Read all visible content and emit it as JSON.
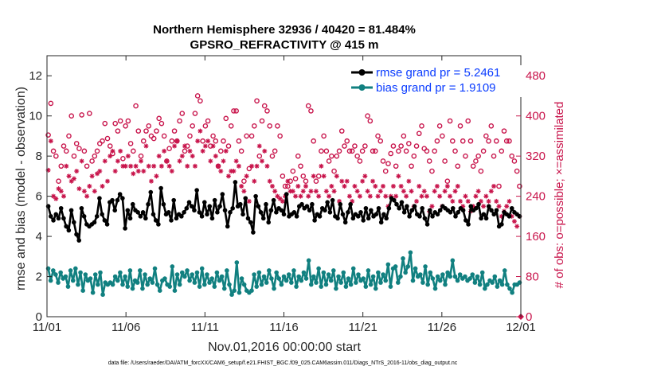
{
  "chart_data": {
    "type": "line",
    "title_line1": "Northern Hemisphere 32936 / 40420 = 81.484%",
    "title_line2": "GPSRO_REFRACTIVITY @ 415 m",
    "ylabel_left": "rmse and bias (model - observation)",
    "ylabel_right": "# of obs: o=possible; ×=assimilated",
    "xlabel": "Nov.01,2016 00:00:00 start",
    "footnote": "data file: /Users/raeder/DAI/ATM_forcXX/CAM6_setup/f.e21.FHIST_BGC.f09_025.CAM6assim.011/Diags_NTrS_2016-11/obs_diag_output.nc",
    "ylim_left": [
      0,
      13
    ],
    "ylim_right": [
      0,
      520
    ],
    "xlim": [
      0,
      30
    ],
    "yticks_left": [
      "0",
      "2",
      "4",
      "6",
      "8",
      "10",
      "12"
    ],
    "yticks_right": [
      "0",
      "80",
      "160",
      "240",
      "320",
      "400",
      "480"
    ],
    "xticks": [
      "11/01",
      "11/06",
      "11/11",
      "11/16",
      "11/21",
      "11/26",
      "12/01"
    ],
    "series": [
      {
        "name": "rmse grand pr = 5.2461",
        "color": "#000000",
        "marker": "filled-circle",
        "values": [
          5.5,
          5.0,
          4.8,
          5.1,
          4.9,
          5.4,
          4.9,
          4.5,
          4.3,
          5.3,
          4.7,
          4.1,
          3.8,
          5.4,
          5.0,
          4.6,
          4.5,
          4.6,
          4.7,
          5.0,
          5.9,
          5.1,
          4.8,
          4.6,
          5.7,
          5.8,
          5.3,
          5.8,
          6.1,
          5.9,
          4.4,
          5.3,
          4.9,
          5.6,
          5.3,
          5.2,
          5.0,
          5.2,
          4.9,
          5.6,
          6.2,
          5.1,
          4.8,
          4.6,
          6.4,
          5.6,
          5.1,
          5.2,
          4.8,
          5.8,
          4.9,
          5.1,
          5.0,
          5.2,
          5.4,
          5.7,
          5.5,
          5.3,
          6.3,
          5.2,
          5.0,
          5.7,
          5.1,
          5.5,
          4.9,
          5.8,
          5.2,
          5.5,
          6.1,
          5.3,
          4.5,
          5.2,
          5.4,
          6.7,
          5.5,
          5.6,
          5.1,
          5.9,
          4.9,
          4.7,
          4.2,
          6.0,
          5.5,
          5.2,
          4.9,
          5.6,
          4.7,
          5.3,
          5.8,
          5.2,
          5.4,
          5.3,
          5.1,
          6.1,
          5.0,
          5.1,
          5.2,
          5.0,
          5.5,
          5.6,
          5.4,
          5.5,
          5.3,
          5.6,
          4.8,
          5.1,
          5.0,
          5.4,
          5.3,
          5.7,
          5.2,
          5.8,
          5.0,
          4.9,
          5.6,
          5.1,
          4.7,
          5.2,
          5.6,
          4.9,
          5.1,
          5.0,
          5.2,
          4.8,
          5.4,
          4.9,
          5.3,
          5.0,
          5.1,
          5.4,
          4.7,
          5.1,
          4.9,
          5.4,
          5.9,
          5.8,
          5.6,
          5.4,
          5.7,
          5.2,
          5.5,
          5.0,
          5.3,
          5.5,
          5.1,
          5.0,
          5.4,
          4.9,
          4.6,
          5.3,
          5.0,
          5.2,
          5.1,
          5.3,
          5.5,
          5.4,
          5.3,
          5.2,
          5.4,
          5.0,
          5.2,
          5.4,
          5.3,
          4.8,
          4.6,
          5.5,
          5.3,
          5.4,
          5.6,
          4.9,
          5.1,
          4.9,
          5.5,
          5.3,
          5.1,
          5.3,
          4.5,
          4.6,
          5.2,
          5.1,
          5.0,
          5.4,
          5.2,
          5.1,
          5.0
        ]
      },
      {
        "name": "bias grand pr = 1.9109",
        "color": "#118080",
        "marker": "filled-circle",
        "values": [
          2.4,
          1.8,
          2.3,
          2.1,
          1.7,
          2.2,
          1.9,
          2.0,
          1.5,
          2.3,
          1.8,
          2.4,
          1.6,
          2.2,
          1.3,
          2.1,
          1.8,
          1.9,
          1.2,
          2.1,
          1.6,
          2.2,
          1.1,
          1.7,
          1.6,
          1.7,
          1.6,
          2.0,
          1.8,
          2.2,
          1.6,
          2.0,
          1.5,
          2.3,
          1.4,
          1.8,
          1.7,
          2.3,
          1.4,
          2.1,
          1.6,
          1.9,
          1.7,
          2.4,
          1.6,
          1.3,
          1.8,
          1.9,
          1.6,
          1.5,
          2.5,
          1.3,
          2.1,
          1.6,
          2.2,
          2.0,
          2.3,
          1.8,
          2.1,
          1.7,
          2.2,
          1.5,
          2.4,
          1.6,
          2.1,
          1.7,
          1.9,
          1.5,
          2.2,
          1.8,
          2.0,
          1.4,
          2.3,
          1.6,
          1.1,
          1.3,
          2.7,
          1.2,
          1.9,
          1.6,
          1.3,
          1.2,
          1.3,
          2.1,
          1.5,
          2.2,
          1.6,
          2.0,
          1.7,
          2.3,
          1.9,
          1.4,
          2.2,
          1.9,
          1.6,
          2.0,
          1.8,
          2.1,
          1.7,
          2.3,
          1.5,
          2.0,
          1.8,
          2.2,
          1.9,
          2.8,
          1.6,
          2.0,
          1.7,
          2.4,
          1.5,
          2.2,
          1.6,
          2.1,
          1.8,
          2.3,
          1.4,
          2.0,
          1.7,
          2.2,
          1.5,
          1.9,
          1.6,
          2.4,
          1.7,
          2.1,
          1.8,
          1.9,
          1.5,
          2.3,
          1.6,
          2.0,
          1.4,
          2.2,
          1.7,
          2.1,
          1.8,
          2.6,
          1.5,
          2.4,
          2.5,
          1.7,
          2.0,
          2.9,
          2.2,
          2.5,
          3.2,
          1.8,
          2.4,
          2.0,
          2.1,
          1.7,
          2.5,
          1.6,
          2.2,
          1.9,
          1.4,
          2.0,
          1.8,
          2.1,
          1.6,
          2.2,
          2.0,
          2.8,
          2.0,
          1.8,
          2.1,
          1.9,
          2.0,
          1.8,
          1.9,
          2.1,
          1.7,
          2.0,
          1.6,
          2.2,
          1.4,
          1.6,
          1.8,
          1.7,
          2.0,
          1.5,
          1.8,
          1.6,
          2.3,
          1.6,
          1.4,
          1.2,
          1.6,
          1.6,
          1.7
        ]
      },
      {
        "name": "obs possible",
        "axis": "right",
        "color": "#c8144b",
        "marker": "open-circle",
        "values": [
          362,
          425,
          330,
          320,
          270,
          300,
          340,
          330,
          360,
          400,
          320,
          345,
          335,
          402,
          330,
          300,
          405,
          310,
          320,
          330,
          345,
          350,
          385,
          355,
          340,
          325,
          385,
          370,
          390,
          315,
          380,
          390,
          345,
          330,
          420,
          370,
          320,
          350,
          370,
          380,
          360,
          355,
          370,
          395,
          385,
          360,
          310,
          335,
          350,
          370,
          350,
          390,
          405,
          330,
          340,
          360,
          380,
          405,
          440,
          430,
          350,
          380,
          390,
          340,
          360,
          350,
          300,
          330,
          350,
          395,
          340,
          380,
          410,
          410,
          350,
          330,
          270,
          360,
          295,
          360,
          380,
          430,
          320,
          390,
          420,
          410,
          380,
          320,
          330,
          380,
          360,
          280,
          260,
          260,
          270,
          290,
          275,
          320,
          300,
          280,
          270,
          420,
          410,
          350,
          270,
          280,
          330,
          360,
          330,
          310,
          320,
          290,
          320,
          330,
          370,
          340,
          350,
          330,
          330,
          340,
          320,
          310,
          330,
          340,
          400,
          390,
          330,
          330,
          360,
          350,
          310,
          290,
          305,
          325,
          340,
          300,
          330,
          340,
          360,
          330,
          345,
          300,
          320,
          340,
          365,
          380,
          335,
          330,
          310,
          290,
          330,
          350,
          380,
          360,
          310,
          270,
          390,
          350,
          330,
          300,
          380,
          350,
          320,
          390,
          350,
          300,
          310,
          320,
          290,
          330,
          360,
          350,
          380,
          320,
          350,
          260,
          330,
          370,
          350,
          350,
          320,
          310,
          290,
          260
        ]
      },
      {
        "name": "obs assimilated",
        "axis": "right",
        "color": "#c8144b",
        "marker": "asterisk",
        "values": [
          292,
          350,
          240,
          235,
          255,
          250,
          240,
          300,
          280,
          270,
          275,
          290,
          255,
          310,
          250,
          240,
          260,
          280,
          250,
          285,
          290,
          260,
          310,
          270,
          320,
          330,
          290,
          310,
          330,
          300,
          300,
          320,
          300,
          285,
          300,
          290,
          310,
          290,
          340,
          300,
          270,
          300,
          280,
          320,
          300,
          330,
          310,
          300,
          290,
          340,
          350,
          310,
          320,
          340,
          300,
          330,
          320,
          300,
          350,
          370,
          330,
          340,
          350,
          310,
          340,
          320,
          300,
          290,
          310,
          330,
          280,
          290,
          290,
          310,
          300,
          260,
          250,
          280,
          230,
          300,
          270,
          300,
          340,
          310,
          330,
          300,
          270,
          260,
          250,
          240,
          235,
          230,
          240,
          270,
          250,
          250,
          240,
          260,
          240,
          250,
          260,
          240,
          250,
          280,
          250,
          240,
          300,
          280,
          250,
          240,
          260,
          250,
          280,
          230,
          270,
          260,
          270,
          240,
          230,
          260,
          250,
          240,
          270,
          280,
          250,
          240,
          270,
          260,
          240,
          250,
          260,
          240,
          220,
          240,
          260,
          240,
          280,
          260,
          250,
          240,
          270,
          250,
          220,
          230,
          260,
          240,
          250,
          240,
          210,
          220,
          250,
          260,
          240,
          220,
          250,
          260,
          240,
          230,
          250,
          260,
          230,
          220,
          240,
          230,
          210,
          220,
          240,
          250,
          230,
          220,
          240,
          230,
          250,
          260,
          230,
          220,
          200,
          210,
          220,
          230,
          200,
          190,
          180,
          200
        ]
      }
    ],
    "legend_position": "top-right",
    "grid": false
  },
  "colors": {
    "rmse": "#000000",
    "bias": "#118080",
    "obs": "#c8144b",
    "legend_text": "#0a3cff"
  }
}
